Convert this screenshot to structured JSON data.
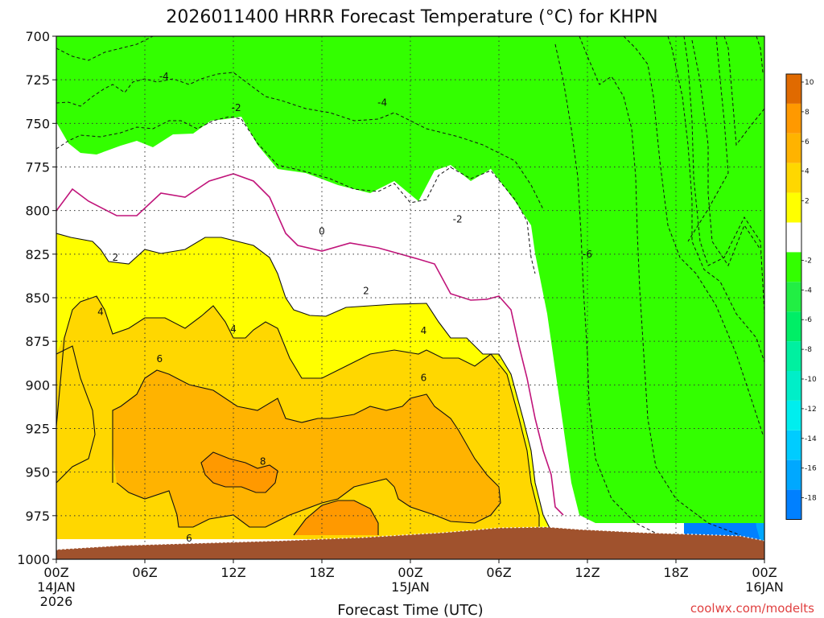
{
  "chart_data": {
    "type": "heatmap",
    "title": "2026011400 HRRR Forecast Temperature (°C) for KHPN",
    "xlabel": "Forecast Time (UTC)",
    "credit": "coolwx.com/modelts",
    "y_axis": {
      "label": "",
      "range": [
        1000,
        700
      ],
      "ticks": [
        "700",
        "725",
        "750",
        "775",
        "800",
        "825",
        "850",
        "875",
        "900",
        "925",
        "950",
        "975",
        "1000"
      ]
    },
    "x_axis": {
      "range_hours": [
        0,
        48
      ],
      "ticks": [
        {
          "label": "00Z",
          "sub1": "14JAN",
          "sub2": "2026"
        },
        {
          "label": "06Z",
          "sub1": "",
          "sub2": ""
        },
        {
          "label": "12Z",
          "sub1": "",
          "sub2": ""
        },
        {
          "label": "18Z",
          "sub1": "",
          "sub2": ""
        },
        {
          "label": "00Z",
          "sub1": "15JAN",
          "sub2": ""
        },
        {
          "label": "06Z",
          "sub1": "",
          "sub2": ""
        },
        {
          "label": "12Z",
          "sub1": "",
          "sub2": ""
        },
        {
          "label": "18Z",
          "sub1": "",
          "sub2": ""
        },
        {
          "label": "00Z",
          "sub1": "16JAN",
          "sub2": ""
        }
      ]
    },
    "grid": true,
    "colorbar": {
      "placement": "right",
      "levels": [
        {
          "label": "10",
          "color": "#e06a00"
        },
        {
          "label": "8",
          "color": "#ff9900"
        },
        {
          "label": "6",
          "color": "#ffb300"
        },
        {
          "label": "4",
          "color": "#ffd700"
        },
        {
          "label": "2",
          "color": "#ffff00"
        },
        {
          "label": "",
          "color": "#ffffff"
        },
        {
          "label": "-2",
          "color": "#33ff00"
        },
        {
          "label": "-4",
          "color": "#22ee44"
        },
        {
          "label": "-6",
          "color": "#00ee66"
        },
        {
          "label": "-8",
          "color": "#00f0a0"
        },
        {
          "label": "-10",
          "color": "#00eec8"
        },
        {
          "label": "-12",
          "color": "#00eeee"
        },
        {
          "label": "-14",
          "color": "#00ccff"
        },
        {
          "label": "-16",
          "color": "#00a8ff"
        },
        {
          "label": "-18",
          "color": "#0080ff"
        }
      ]
    },
    "terrain_color": "#a0522d",
    "contour_labels": [
      {
        "text": "-4",
        "hour": 7.3,
        "p": 723
      },
      {
        "text": "-2",
        "hour": 12.2,
        "p": 741
      },
      {
        "text": "-4",
        "hour": 22.1,
        "p": 738
      },
      {
        "text": "0",
        "hour": 18.0,
        "p": 812
      },
      {
        "text": "-2",
        "hour": 27.2,
        "p": 805
      },
      {
        "text": "-6",
        "hour": 36.0,
        "p": 825
      },
      {
        "text": "2",
        "hour": 4.0,
        "p": 827
      },
      {
        "text": "4",
        "hour": 3.0,
        "p": 858
      },
      {
        "text": "2",
        "hour": 21.0,
        "p": 846
      },
      {
        "text": "4",
        "hour": 12.0,
        "p": 868
      },
      {
        "text": "4",
        "hour": 24.9,
        "p": 869
      },
      {
        "text": "6",
        "hour": 7.0,
        "p": 885
      },
      {
        "text": "6",
        "hour": 24.9,
        "p": 896
      },
      {
        "text": "8",
        "hour": 14.0,
        "p": 944
      },
      {
        "text": "6",
        "hour": 9.0,
        "p": 988
      }
    ]
  }
}
